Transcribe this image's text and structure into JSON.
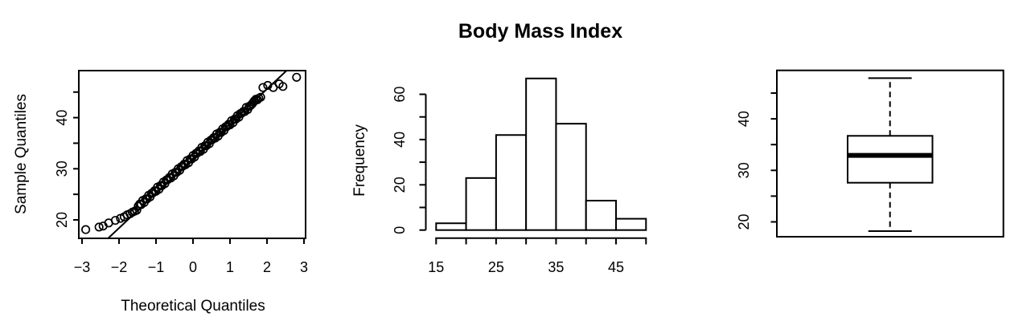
{
  "figure": {
    "background": "#ffffff",
    "foreground": "#000000",
    "main_title": "Body Mass Index"
  },
  "chart_data": [
    {
      "type": "scatter",
      "name": "normal-qq-plot",
      "xlabel": "Theoretical Quantiles",
      "ylabel": "Sample Quantiles",
      "xlim": [
        -3,
        3
      ],
      "ylim": [
        16.4,
        49.1
      ],
      "x_axis": {
        "ticks": [
          -3,
          -2,
          -1,
          0,
          1,
          2,
          3
        ],
        "labels": [
          "−3",
          "−2",
          "−1",
          "0",
          "1",
          "2",
          "3"
        ]
      },
      "y_axis": {
        "ticks": [
          20,
          25,
          30,
          35,
          40,
          45
        ],
        "labeled": [
          20,
          30,
          40
        ]
      },
      "grid": false,
      "marker": "open-circle",
      "qq_line": {
        "slope": 6.8,
        "intercept": 32
      },
      "points": [
        [
          -2.9,
          18.1
        ],
        [
          -2.54,
          18.6
        ],
        [
          -2.43,
          18.8
        ],
        [
          -2.28,
          19.4
        ],
        [
          -2.1,
          19.9
        ],
        [
          -1.96,
          20.3
        ],
        [
          -1.86,
          20.6
        ],
        [
          -1.78,
          21.0
        ],
        [
          -1.7,
          21.2
        ],
        [
          -1.64,
          21.5
        ],
        [
          -1.58,
          21.7
        ],
        [
          -1.52,
          21.9
        ],
        [
          -1.48,
          22.7
        ],
        [
          -1.44,
          23.1
        ],
        [
          -1.4,
          23.0
        ],
        [
          -1.36,
          23.8
        ],
        [
          -1.32,
          23.4
        ],
        [
          -1.28,
          24.1
        ],
        [
          -1.24,
          24.1
        ],
        [
          -1.2,
          24.8
        ],
        [
          -1.16,
          24.5
        ],
        [
          -1.12,
          25.2
        ],
        [
          -1.08,
          25.3
        ],
        [
          -1.04,
          25.7
        ],
        [
          -1.0,
          25.6
        ],
        [
          -0.96,
          26.4
        ],
        [
          -0.92,
          26.0
        ],
        [
          -0.88,
          26.7
        ],
        [
          -0.84,
          26.7
        ],
        [
          -0.8,
          27.4
        ],
        [
          -0.76,
          27.1
        ],
        [
          -0.72,
          27.8
        ],
        [
          -0.68,
          27.9
        ],
        [
          -0.64,
          28.3
        ],
        [
          -0.6,
          28.2
        ],
        [
          -0.56,
          29.0
        ],
        [
          -0.52,
          28.6
        ],
        [
          -0.48,
          29.3
        ],
        [
          -0.44,
          29.3
        ],
        [
          -0.4,
          30.0
        ],
        [
          -0.36,
          29.7
        ],
        [
          -0.32,
          30.4
        ],
        [
          -0.28,
          30.5
        ],
        [
          -0.24,
          30.9
        ],
        [
          -0.2,
          30.8
        ],
        [
          -0.16,
          31.6
        ],
        [
          -0.12,
          31.2
        ],
        [
          -0.08,
          31.9
        ],
        [
          -0.04,
          31.9
        ],
        [
          0.0,
          32.6
        ],
        [
          0.04,
          32.3
        ],
        [
          0.08,
          33.0
        ],
        [
          0.12,
          33.1
        ],
        [
          0.16,
          33.5
        ],
        [
          0.2,
          33.4
        ],
        [
          0.24,
          34.2
        ],
        [
          0.28,
          33.8
        ],
        [
          0.32,
          34.5
        ],
        [
          0.36,
          34.5
        ],
        [
          0.4,
          35.2
        ],
        [
          0.44,
          34.9
        ],
        [
          0.48,
          35.6
        ],
        [
          0.52,
          35.7
        ],
        [
          0.56,
          36.1
        ],
        [
          0.6,
          36.0
        ],
        [
          0.64,
          36.8
        ],
        [
          0.68,
          36.4
        ],
        [
          0.72,
          37.1
        ],
        [
          0.76,
          37.1
        ],
        [
          0.8,
          37.8
        ],
        [
          0.84,
          37.5
        ],
        [
          0.88,
          38.2
        ],
        [
          0.92,
          38.3
        ],
        [
          0.96,
          38.7
        ],
        [
          1.0,
          38.6
        ],
        [
          1.04,
          39.4
        ],
        [
          1.08,
          39.0
        ],
        [
          1.12,
          39.7
        ],
        [
          1.16,
          39.7
        ],
        [
          1.2,
          40.4
        ],
        [
          1.24,
          40.1
        ],
        [
          1.28,
          40.8
        ],
        [
          1.32,
          40.9
        ],
        [
          1.36,
          41.2
        ],
        [
          1.4,
          41.2
        ],
        [
          1.44,
          42.0
        ],
        [
          1.48,
          41.6
        ],
        [
          1.52,
          42.2
        ],
        [
          1.56,
          42.4
        ],
        [
          1.6,
          42.7
        ],
        [
          1.63,
          43.0
        ],
        [
          1.66,
          43.3
        ],
        [
          1.7,
          43.6
        ],
        [
          1.74,
          43.5
        ],
        [
          1.78,
          43.8
        ],
        [
          1.83,
          44.0
        ],
        [
          1.89,
          45.9
        ],
        [
          2.02,
          46.3
        ],
        [
          2.17,
          45.9
        ],
        [
          2.33,
          46.6
        ],
        [
          2.43,
          46.1
        ],
        [
          2.8,
          47.9
        ]
      ]
    },
    {
      "type": "bar",
      "name": "histogram",
      "title": "Body Mass Index",
      "xlabel": "",
      "ylabel": "Frequency",
      "bins": [
        15,
        20,
        25,
        30,
        35,
        40,
        45,
        50
      ],
      "counts": [
        3,
        23,
        42,
        67,
        47,
        13,
        5
      ],
      "x_axis": {
        "ticks": [
          15,
          20,
          25,
          30,
          35,
          40,
          45,
          50
        ],
        "labeled": [
          15,
          25,
          35,
          45
        ]
      },
      "y_axis": {
        "ticks": [
          0,
          10,
          20,
          30,
          40,
          50,
          60
        ],
        "labeled": [
          0,
          20,
          40,
          60
        ]
      },
      "ylim": [
        0,
        67
      ],
      "grid": false,
      "bar_fill": "#ffffff",
      "bar_stroke": "#000000"
    },
    {
      "type": "boxplot",
      "name": "boxplot",
      "y_axis": {
        "ticks": [
          20,
          25,
          30,
          35,
          40,
          45
        ],
        "labeled": [
          20,
          30,
          40
        ]
      },
      "stats": {
        "min": 18.2,
        "q1": 27.6,
        "median": 32.9,
        "q3": 36.7,
        "max": 47.9
      },
      "whisker_style": "dashed",
      "grid": false
    }
  ]
}
